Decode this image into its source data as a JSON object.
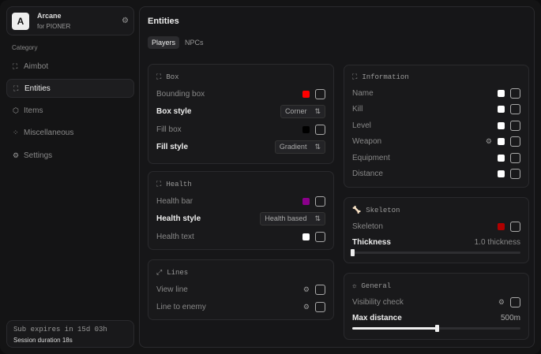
{
  "app": {
    "logo_letter": "A",
    "name": "Arcane",
    "subtitle": "for PIONER"
  },
  "sidebar": {
    "category_label": "Category",
    "items": [
      {
        "label": "Aimbot",
        "icon": "crosshair-icon"
      },
      {
        "label": "Entities",
        "icon": "entities-icon",
        "active": true
      },
      {
        "label": "Items",
        "icon": "cube-icon"
      },
      {
        "label": "Miscellaneous",
        "icon": "misc-icon"
      },
      {
        "label": "Settings",
        "icon": "gear-icon"
      }
    ]
  },
  "footer": {
    "sub": "Sub expires in 15d 03h",
    "session": "Session duration 18s"
  },
  "main": {
    "title": "Entities",
    "tabs": [
      {
        "label": "Players",
        "active": true
      },
      {
        "label": "NPCs"
      }
    ]
  },
  "box": {
    "title": "Box",
    "bounding_box": "Bounding box",
    "bounding_color": "#ff0000",
    "box_style": "Box style",
    "box_style_value": "Corner",
    "fill_box": "Fill box",
    "fill_color": "#000000",
    "fill_style": "Fill style",
    "fill_style_value": "Gradient"
  },
  "health": {
    "title": "Health",
    "bar": "Health bar",
    "bar_color": "#8b008b",
    "style": "Health style",
    "style_value": "Health based",
    "text": "Health text",
    "text_color": "#ffffff"
  },
  "lines": {
    "title": "Lines",
    "view": "View line",
    "enemy": "Line to enemy"
  },
  "info": {
    "title": "Information",
    "items": [
      "Name",
      "Kill",
      "Level",
      "Weapon",
      "Equipment",
      "Distance"
    ]
  },
  "skeleton": {
    "title": "Skeleton",
    "label": "Skeleton",
    "color": "#b00000",
    "thickness": "Thickness",
    "thickness_value": "1.0 thickness",
    "thickness_fraction": 0
  },
  "general": {
    "title": "General",
    "visibility": "Visibility check",
    "max_distance": "Max distance",
    "max_distance_value": "500m",
    "max_distance_fraction": 0.5
  }
}
